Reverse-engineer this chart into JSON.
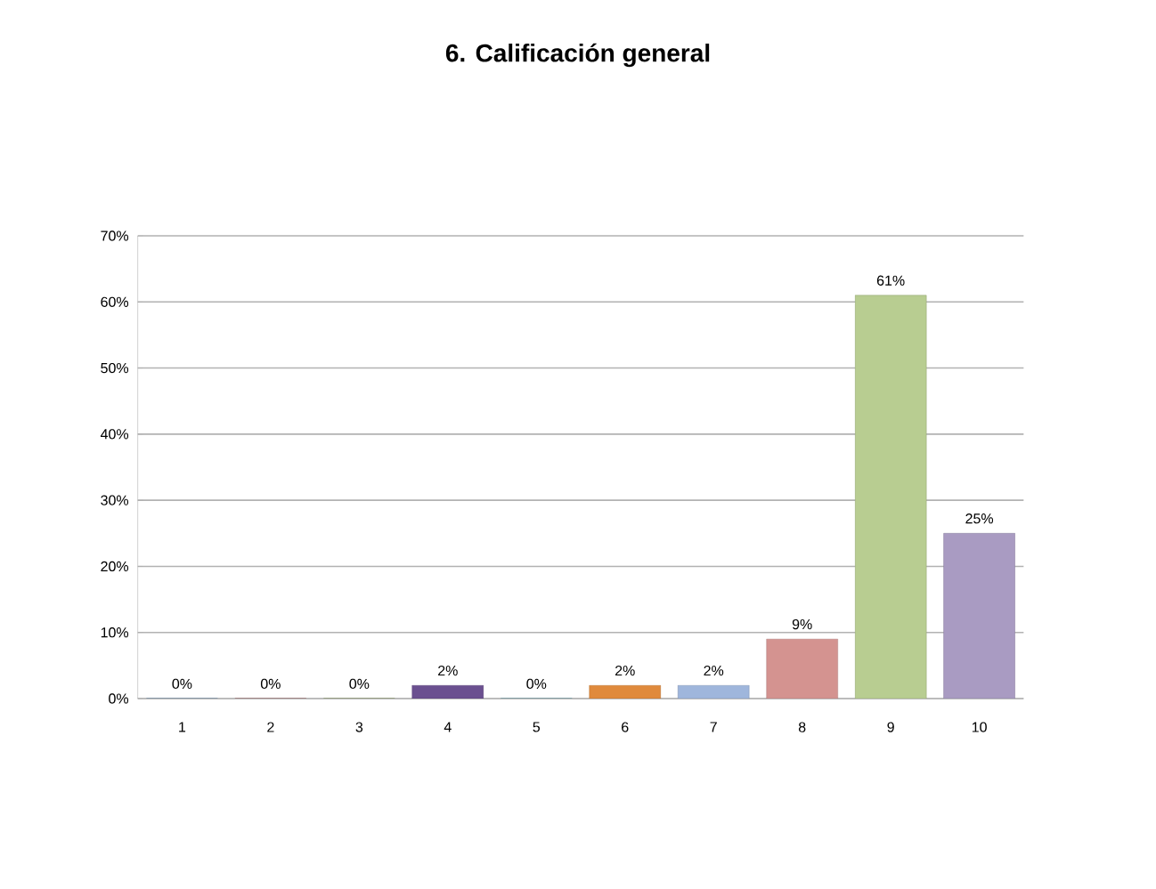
{
  "chart_data": {
    "type": "bar",
    "title": "6. Calificación  general",
    "categories": [
      "1",
      "2",
      "3",
      "4",
      "5",
      "6",
      "7",
      "8",
      "9",
      "10"
    ],
    "values": [
      0,
      0,
      0,
      2,
      0,
      2,
      2,
      9,
      61,
      25
    ],
    "value_labels": [
      "0%",
      "0%",
      "0%",
      "2%",
      "0%",
      "2%",
      "2%",
      "9%",
      "61%",
      "25%"
    ],
    "colors": [
      "#4a7ab5",
      "#a0403d",
      "#7a9a3c",
      "#6b5090",
      "#3a9aae",
      "#e08a3c",
      "#9fb6dc",
      "#d49390",
      "#b8cd91",
      "#a99bc2"
    ],
    "ylim": [
      0,
      70
    ],
    "yticks": [
      {
        "value": 0,
        "label": "0%"
      },
      {
        "value": 10,
        "label": "10%"
      },
      {
        "value": 20,
        "label": "20%"
      },
      {
        "value": 30,
        "label": "30%"
      },
      {
        "value": 40,
        "label": "40%"
      },
      {
        "value": 50,
        "label": "50%"
      },
      {
        "value": 60,
        "label": "60%"
      },
      {
        "value": 70,
        "label": "70%"
      }
    ],
    "grid": "y"
  }
}
